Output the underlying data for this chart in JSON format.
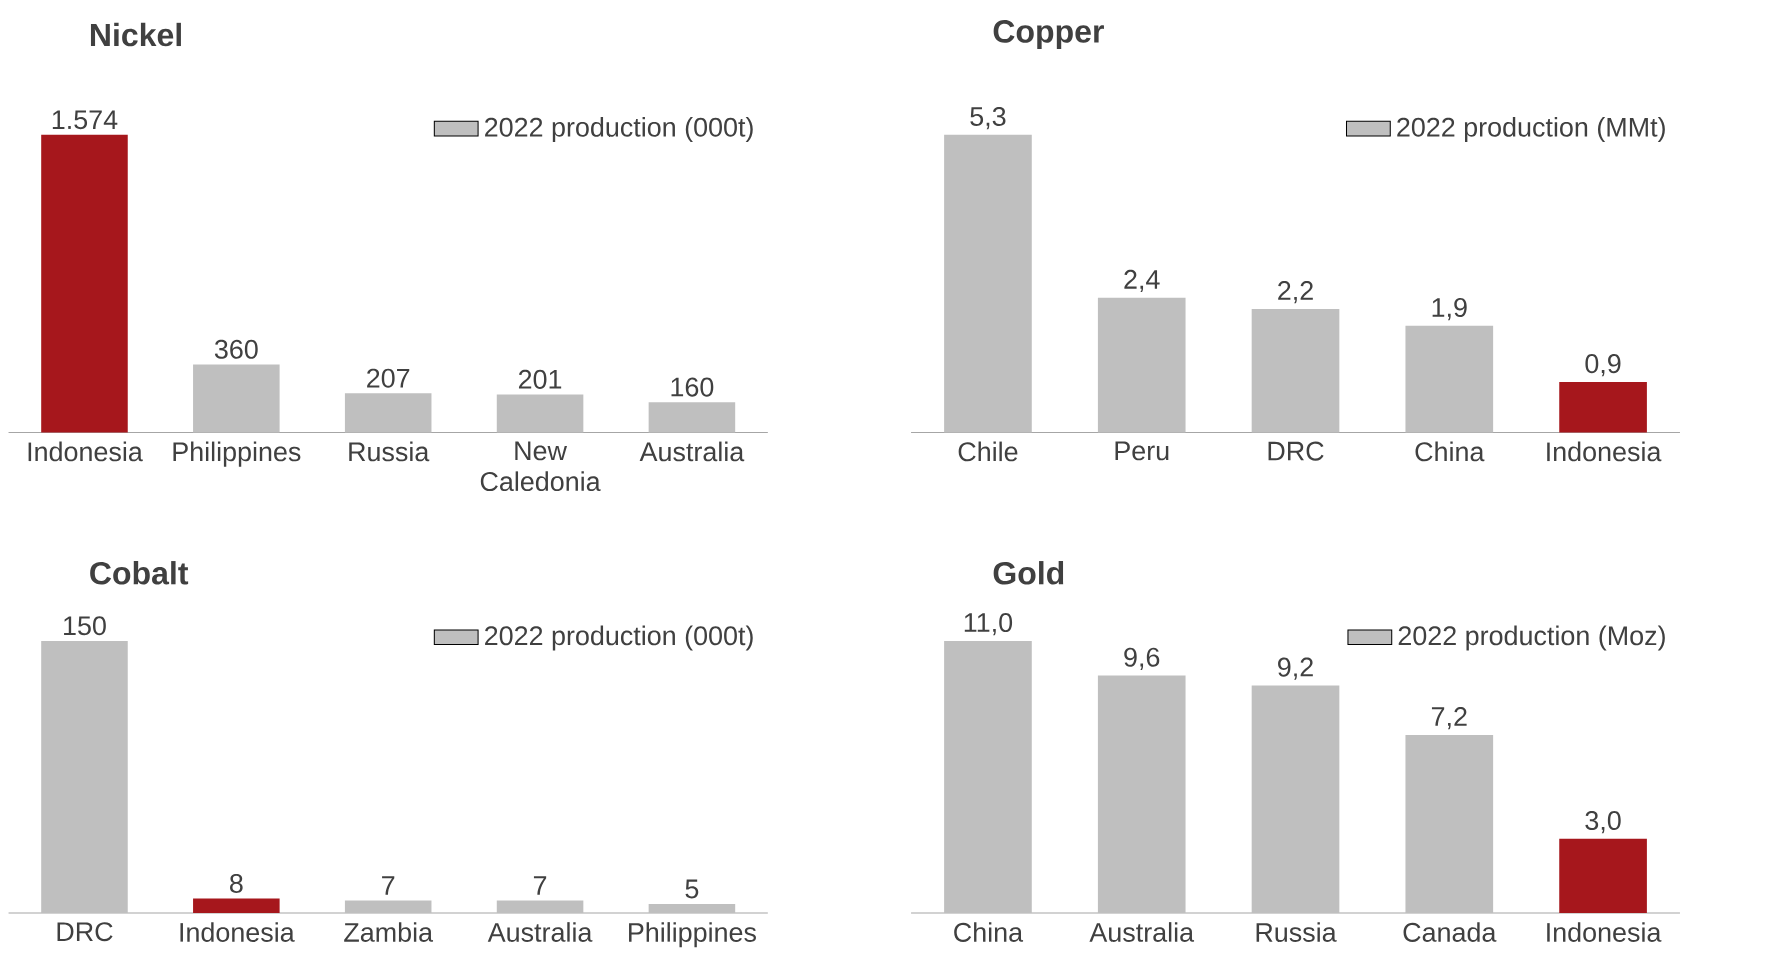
{
  "chart_data": [
    {
      "type": "bar",
      "title": "Nickel",
      "categories": [
        "Indonesia",
        "Philippines",
        "Russia",
        "New Caledonia",
        "Australia"
      ],
      "series": [
        {
          "name": "2022 production (000t)",
          "color": "#bfbfbf",
          "colors": [
            "#a6171c",
            "#bfbfbf",
            "#bfbfbf",
            "#bfbfbf",
            "#bfbfbf"
          ],
          "values": [
            1574,
            360,
            207,
            201,
            160
          ],
          "value_labels": [
            "1.574",
            "360",
            "207",
            "201",
            "160"
          ]
        }
      ],
      "legend": "top right",
      "tick_labels": "x"
    },
    {
      "type": "bar",
      "title": "Copper",
      "categories": [
        "Chile",
        "Peru",
        "DRC",
        "China",
        "Indonesia"
      ],
      "series": [
        {
          "name": "2022 production (MMt)",
          "color": "#bfbfbf",
          "colors": [
            "#bfbfbf",
            "#bfbfbf",
            "#bfbfbf",
            "#bfbfbf",
            "#a6171c"
          ],
          "values": [
            5.3,
            2.4,
            2.2,
            1.9,
            0.9
          ],
          "value_labels": [
            "5,3",
            "2,4",
            "2,2",
            "1,9",
            "0,9"
          ]
        }
      ],
      "legend": "top right",
      "tick_labels": "x"
    },
    {
      "type": "bar",
      "title": "Cobalt",
      "categories": [
        "DRC",
        "Indonesia",
        "Zambia",
        "Australia",
        "Philippines"
      ],
      "series": [
        {
          "name": "2022 production (000t)",
          "color": "#bfbfbf",
          "colors": [
            "#bfbfbf",
            "#a6171c",
            "#bfbfbf",
            "#bfbfbf",
            "#bfbfbf"
          ],
          "values": [
            150,
            8,
            7,
            7,
            5
          ],
          "value_labels": [
            "150",
            "8",
            "7",
            "7",
            "5"
          ]
        }
      ],
      "legend": "top right",
      "tick_labels": "x"
    },
    {
      "type": "bar",
      "title": "Gold",
      "categories": [
        "China",
        "Australia",
        "Russia",
        "Canada",
        "Indonesia"
      ],
      "series": [
        {
          "name": "2022 production (Moz)",
          "color": "#bfbfbf",
          "colors": [
            "#bfbfbf",
            "#bfbfbf",
            "#bfbfbf",
            "#bfbfbf",
            "#a6171c"
          ],
          "values": [
            11.0,
            9.6,
            9.2,
            7.2,
            3.0
          ],
          "value_labels": [
            "11,0",
            "9,6",
            "9,2",
            "7,2",
            "3,0"
          ]
        }
      ],
      "legend": "top right",
      "tick_labels": "x"
    }
  ]
}
